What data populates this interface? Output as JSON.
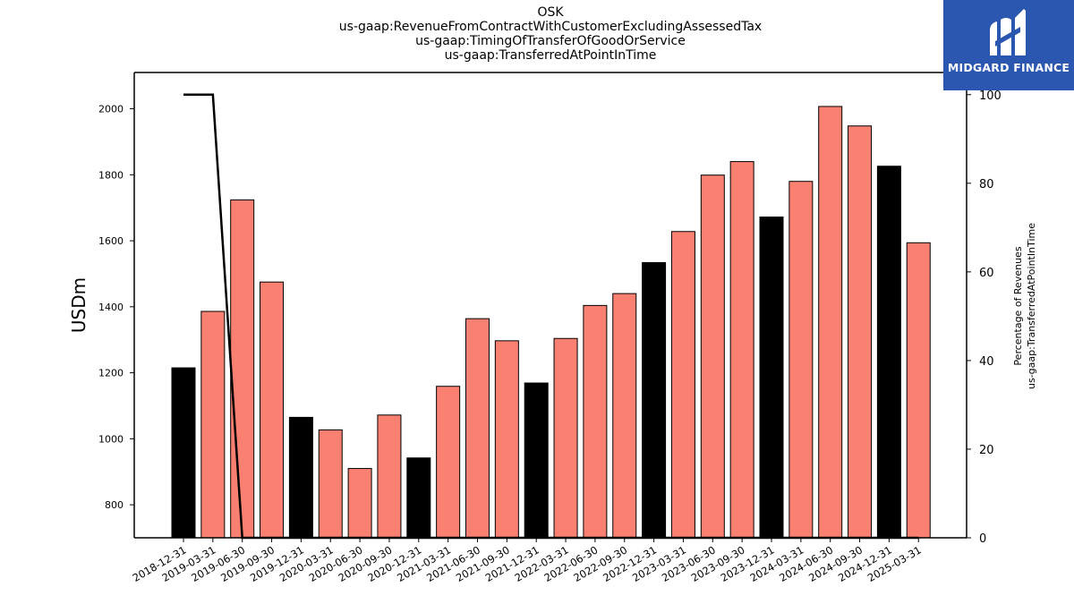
{
  "title": {
    "lines": [
      "OSK",
      "us-gaap:RevenueFromContractWithCustomerExcludingAssessedTax",
      "us-gaap:TimingOfTransferOfGoodOrService",
      "us-gaap:TransferredAtPointInTime"
    ]
  },
  "logo": {
    "text": "MIDGARD FINANCE",
    "background": "#2b57b1",
    "icon": "midgard-logo-icon"
  },
  "chart_data": {
    "type": "bar",
    "ylabel": "USDm",
    "y2label_lines": [
      "Percentage of Revenues",
      "us-gaap:TransferredAtPointInTime"
    ],
    "ylim": [
      700,
      2110
    ],
    "y2lim": [
      0,
      105
    ],
    "yticks": [
      800,
      1000,
      1200,
      1400,
      1600,
      1800,
      2000
    ],
    "y2ticks": [
      0,
      20,
      40,
      60,
      80,
      100
    ],
    "categories": [
      "2018-12-31",
      "2019-03-31",
      "2019-06-30",
      "2019-09-30",
      "2019-12-31",
      "2020-03-31",
      "2020-06-30",
      "2020-09-30",
      "2020-12-31",
      "2021-03-31",
      "2021-06-30",
      "2021-09-30",
      "2021-12-31",
      "2022-03-31",
      "2022-06-30",
      "2022-09-30",
      "2022-12-31",
      "2023-03-31",
      "2023-06-30",
      "2023-09-30",
      "2023-12-31",
      "2024-03-31",
      "2024-06-30",
      "2024-09-30",
      "2024-12-31",
      "2025-03-31"
    ],
    "values": [
      1215,
      1386,
      1724,
      1475,
      1065,
      1027,
      910,
      1072,
      942,
      1159,
      1364,
      1297,
      1169,
      1304,
      1404,
      1440,
      1534,
      1628,
      1799,
      1840,
      1672,
      1780,
      2007,
      1948,
      1826,
      1594
    ],
    "bar_colors": [
      "#000000",
      "#fa8072",
      "#fa8072",
      "#fa8072",
      "#000000",
      "#fa8072",
      "#fa8072",
      "#fa8072",
      "#000000",
      "#fa8072",
      "#fa8072",
      "#fa8072",
      "#000000",
      "#fa8072",
      "#fa8072",
      "#fa8072",
      "#000000",
      "#fa8072",
      "#fa8072",
      "#fa8072",
      "#000000",
      "#fa8072",
      "#fa8072",
      "#fa8072",
      "#000000",
      "#fa8072"
    ],
    "line_series": {
      "axis": "right",
      "color": "#000000",
      "values": [
        100,
        100,
        0,
        0,
        0,
        0,
        0,
        0,
        0,
        0,
        0,
        0,
        0,
        0,
        0,
        0,
        0,
        0,
        0,
        0,
        0,
        0,
        0,
        0,
        0,
        0
      ]
    },
    "colors": {
      "annual": "#000000",
      "quarter": "#fa8072",
      "line": "#000000"
    }
  }
}
